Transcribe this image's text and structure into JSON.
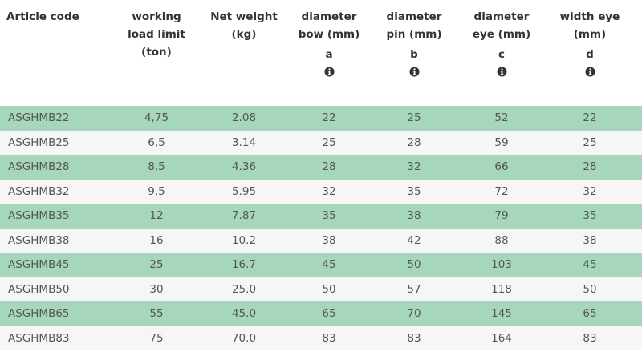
{
  "table": {
    "columns": [
      {
        "lines": [
          "Article code"
        ]
      },
      {
        "lines": [
          "working",
          "load limit",
          "(ton)"
        ]
      },
      {
        "lines": [
          "Net weight",
          "(kg)"
        ]
      },
      {
        "lines": [
          "diameter",
          "bow (mm)"
        ],
        "letter": "a"
      },
      {
        "lines": [
          "diameter",
          "pin (mm)"
        ],
        "letter": "b"
      },
      {
        "lines": [
          "diameter",
          "eye (mm)"
        ],
        "letter": "c"
      },
      {
        "lines": [
          "width eye",
          "(mm)"
        ],
        "letter": "d"
      }
    ],
    "rows": [
      [
        "ASGHMB22",
        "4,75",
        "2.08",
        "22",
        "25",
        "52",
        "22"
      ],
      [
        "ASGHMB25",
        "6,5",
        "3.14",
        "25",
        "28",
        "59",
        "25"
      ],
      [
        "ASGHMB28",
        "8,5",
        "4.36",
        "28",
        "32",
        "66",
        "28"
      ],
      [
        "ASGHMB32",
        "9,5",
        "5.95",
        "32",
        "35",
        "72",
        "32"
      ],
      [
        "ASGHMB35",
        "12",
        "7.87",
        "35",
        "38",
        "79",
        "35"
      ],
      [
        "ASGHMB38",
        "16",
        "10.2",
        "38",
        "42",
        "88",
        "38"
      ],
      [
        "ASGHMB45",
        "25",
        "16.7",
        "45",
        "50",
        "103",
        "45"
      ],
      [
        "ASGHMB50",
        "30",
        "25.0",
        "50",
        "57",
        "118",
        "50"
      ],
      [
        "ASGHMB65",
        "55",
        "45.0",
        "65",
        "70",
        "145",
        "65"
      ],
      [
        "ASGHMB83",
        "75",
        "70.0",
        "83",
        "83",
        "164",
        "83"
      ]
    ]
  }
}
